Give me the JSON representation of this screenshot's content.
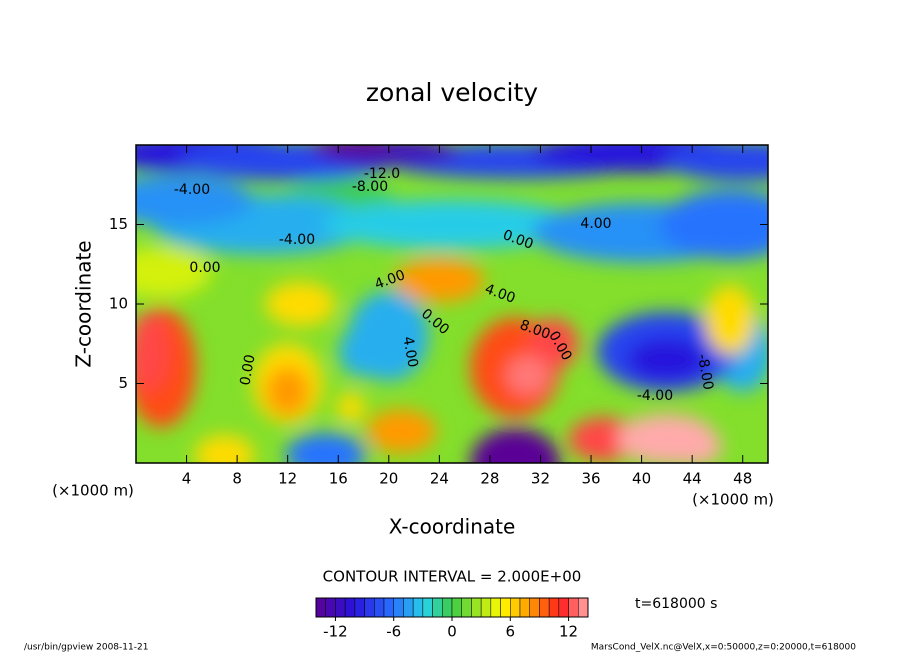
{
  "chart_data": {
    "type": "contour",
    "title": "zonal velocity",
    "x_label": "X-coordinate",
    "y_label": "Z-coordinate",
    "x_unit": "(×1000 m)",
    "y_unit": "(×1000 m)",
    "xlim": [
      0,
      50
    ],
    "xticks": [
      4,
      8,
      12,
      16,
      20,
      24,
      28,
      32,
      36,
      40,
      44,
      48
    ],
    "ylim": [
      0,
      20
    ],
    "yticks": [
      5,
      10,
      15
    ],
    "background_value": 2,
    "field": [
      {
        "x": 16,
        "z": 16,
        "value": 0
      },
      {
        "x": 2,
        "z": 12,
        "value": 4
      },
      {
        "x": 10,
        "z": 15,
        "value": -4
      },
      {
        "x": 25,
        "z": 15,
        "value": -3
      },
      {
        "x": 40,
        "z": 14.5,
        "value": -5
      },
      {
        "x": 47,
        "z": 15,
        "value": -6
      },
      {
        "x": 3,
        "z": 16.5,
        "value": -5
      },
      {
        "x": 5,
        "z": 19.5,
        "value": -10
      },
      {
        "x": 12,
        "z": 19,
        "value": -8
      },
      {
        "x": 30,
        "z": 19,
        "value": -8
      },
      {
        "x": 40,
        "z": 19.5,
        "value": -10
      },
      {
        "x": 48,
        "z": 19,
        "value": -8
      },
      {
        "x": 20,
        "z": 19.6,
        "value": -12
      },
      {
        "x": 17,
        "z": 20,
        "value": -14
      },
      {
        "x": 20,
        "z": 8,
        "value": -4
      },
      {
        "x": 18,
        "z": 7,
        "value": -4
      },
      {
        "x": 48,
        "z": 7,
        "value": -4
      },
      {
        "x": 15,
        "z": 0.5,
        "value": -6
      },
      {
        "x": 42,
        "z": 7,
        "value": -8
      },
      {
        "x": 42,
        "z": 6.5,
        "value": -10
      },
      {
        "x": 30,
        "z": 0,
        "value": -14
      },
      {
        "x": 13,
        "z": 10,
        "value": 6
      },
      {
        "x": 24,
        "z": 11.5,
        "value": 8
      },
      {
        "x": 47,
        "z": 9,
        "value": 6
      },
      {
        "x": 7,
        "z": 0.5,
        "value": 6
      },
      {
        "x": 12,
        "z": 5,
        "value": 6
      },
      {
        "x": 12,
        "z": 4.5,
        "value": 8
      },
      {
        "x": 17,
        "z": 3.5,
        "value": 6
      },
      {
        "x": 21,
        "z": 2,
        "value": 8
      },
      {
        "x": 2,
        "z": 6,
        "value": 10
      },
      {
        "x": 1,
        "z": 7,
        "value": 12
      },
      {
        "x": 30,
        "z": 6,
        "value": 10
      },
      {
        "x": 33,
        "z": 7.5,
        "value": 12
      },
      {
        "x": 31,
        "z": 5.5,
        "value": 13
      },
      {
        "x": 37,
        "z": 1.5,
        "value": 12
      },
      {
        "x": 42,
        "z": 1.5,
        "value": 14
      },
      {
        "x": 44,
        "z": 1,
        "value": 14
      }
    ],
    "contour_labels": [
      "-4.00",
      "-8.00",
      "-12.0",
      "-4.00",
      "0.00",
      "4.00",
      "0.00",
      "4.00",
      "4.00",
      "0.00",
      "4.00",
      "8.00",
      "0.00",
      "0.00",
      "-4.00",
      "-8.00"
    ],
    "contour_interval": "CONTOUR INTERVAL = 2.000E+00",
    "colorbar": {
      "levels": [
        -14,
        -13,
        -12,
        -11,
        -10,
        -9,
        -8,
        -7,
        -6,
        -5,
        -4,
        -3,
        -2,
        -1,
        0,
        1,
        2,
        3,
        4,
        5,
        6,
        7,
        8,
        9,
        10,
        11,
        12,
        13,
        14
      ],
      "ticks": [
        -12,
        -6,
        0,
        6,
        12
      ]
    },
    "time_label": "t=618000 s",
    "footer_left": "/usr/bin/gpview  2008-11-21",
    "footer_right": "MarsCond_VelX.nc@VelX,x=0:50000,z=0:20000,t=618000"
  }
}
